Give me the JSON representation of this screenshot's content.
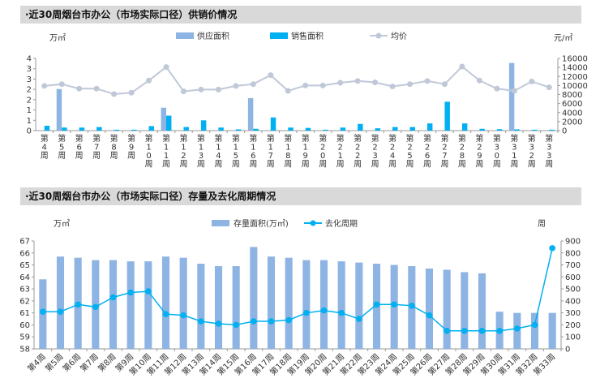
{
  "chart_data": [
    {
      "type": "bar",
      "title": "·近30周烟台市办公（市场实际口径）供销价情况",
      "left_unit": "万㎡",
      "right_unit": "元/㎡",
      "categories": [
        "第4周",
        "第5周",
        "第6周",
        "第7周",
        "第8周",
        "第9周",
        "第10周",
        "第11周",
        "第12周",
        "第13周",
        "第14周",
        "第15周",
        "第16周",
        "第17周",
        "第18周",
        "第19周",
        "第20周",
        "第21周",
        "第22周",
        "第23周",
        "第24周",
        "第25周",
        "第26周",
        "第27周",
        "第28周",
        "第29周",
        "第30周",
        "第31周",
        "第32周",
        "第33周"
      ],
      "ylim_left": [
        0,
        4
      ],
      "yticks_left": [
        "0",
        "1",
        "1",
        "2",
        "2",
        "3",
        "3",
        "4"
      ],
      "ylim_right": [
        0,
        16000
      ],
      "yticks_right": [
        "0",
        "2000",
        "4000",
        "6000",
        "8000",
        "10000",
        "12000",
        "14000",
        "16000"
      ],
      "series": [
        {
          "name": "供应面积",
          "kind": "bar",
          "color": "#8eb4e3",
          "values": [
            0,
            2.3,
            0,
            0,
            0,
            0,
            0,
            1.27,
            0,
            0,
            0,
            0,
            1.8,
            0,
            0,
            0,
            0,
            0,
            0,
            0,
            0,
            0,
            0,
            0,
            0,
            0,
            0,
            3.75,
            0,
            0
          ]
        },
        {
          "name": "销售面积",
          "kind": "bar",
          "color": "#00b0f0",
          "values": [
            0.27,
            0.17,
            0.17,
            0.2,
            0.05,
            0.05,
            0.25,
            0.83,
            0.2,
            0.57,
            0.17,
            0.07,
            0.1,
            0.73,
            0.17,
            0.15,
            0.05,
            0.17,
            0.37,
            0.13,
            0.2,
            0.2,
            0.4,
            1.6,
            0.4,
            0.1,
            0.08,
            0.07,
            0.05,
            0.05
          ]
        },
        {
          "name": "均价",
          "kind": "line",
          "color": "#c0c8d8",
          "axis": "right",
          "values": [
            9900,
            10300,
            9300,
            9300,
            8100,
            8400,
            11100,
            14100,
            8700,
            9100,
            9100,
            9900,
            10300,
            12300,
            8800,
            10000,
            10000,
            10600,
            11000,
            10700,
            9800,
            10300,
            11000,
            10300,
            14200,
            11100,
            9300,
            8800,
            10900,
            9600
          ]
        }
      ]
    },
    {
      "type": "bar",
      "title": "·近30周烟台市办公（市场实际口径）存量及去化周期情况",
      "left_unit": "万㎡",
      "right_unit": "周",
      "categories": [
        "第4周",
        "第5周",
        "第6周",
        "第7周",
        "第8周",
        "第9周",
        "第10周",
        "第11周",
        "第12周",
        "第13周",
        "第14周",
        "第15周",
        "第16周",
        "第17周",
        "第18周",
        "第19周",
        "第20周",
        "第21周",
        "第22周",
        "第23周",
        "第24周",
        "第25周",
        "第26周",
        "第27周",
        "第28周",
        "第29周",
        "第30周",
        "第31周",
        "第32周",
        "第33周"
      ],
      "ylim_left": [
        58,
        67
      ],
      "yticks_left": [
        "58",
        "59",
        "60",
        "61",
        "62",
        "63",
        "64",
        "65",
        "66",
        "67"
      ],
      "ylim_right": [
        0,
        900
      ],
      "yticks_right": [
        "0",
        "100",
        "200",
        "300",
        "400",
        "500",
        "600",
        "700",
        "800",
        "900"
      ],
      "series": [
        {
          "name": "存量面积(万㎡)",
          "kind": "bar",
          "color": "#8eb4e3",
          "values": [
            63.8,
            65.7,
            65.6,
            65.4,
            65.4,
            65.3,
            65.3,
            65.7,
            65.6,
            65.1,
            64.9,
            64.9,
            66.5,
            65.7,
            65.6,
            65.4,
            65.4,
            65.3,
            65.2,
            65.1,
            65.0,
            64.9,
            64.7,
            64.6,
            64.4,
            64.3,
            61.1,
            61.0,
            61.0,
            61.0
          ]
        },
        {
          "name": "去化周期",
          "kind": "line",
          "color": "#00b0f0",
          "axis": "right",
          "values": [
            310,
            310,
            370,
            350,
            430,
            470,
            480,
            290,
            280,
            230,
            210,
            200,
            230,
            230,
            240,
            300,
            320,
            300,
            250,
            370,
            370,
            360,
            280,
            150,
            150,
            150,
            150,
            170,
            200,
            840
          ]
        }
      ]
    }
  ]
}
